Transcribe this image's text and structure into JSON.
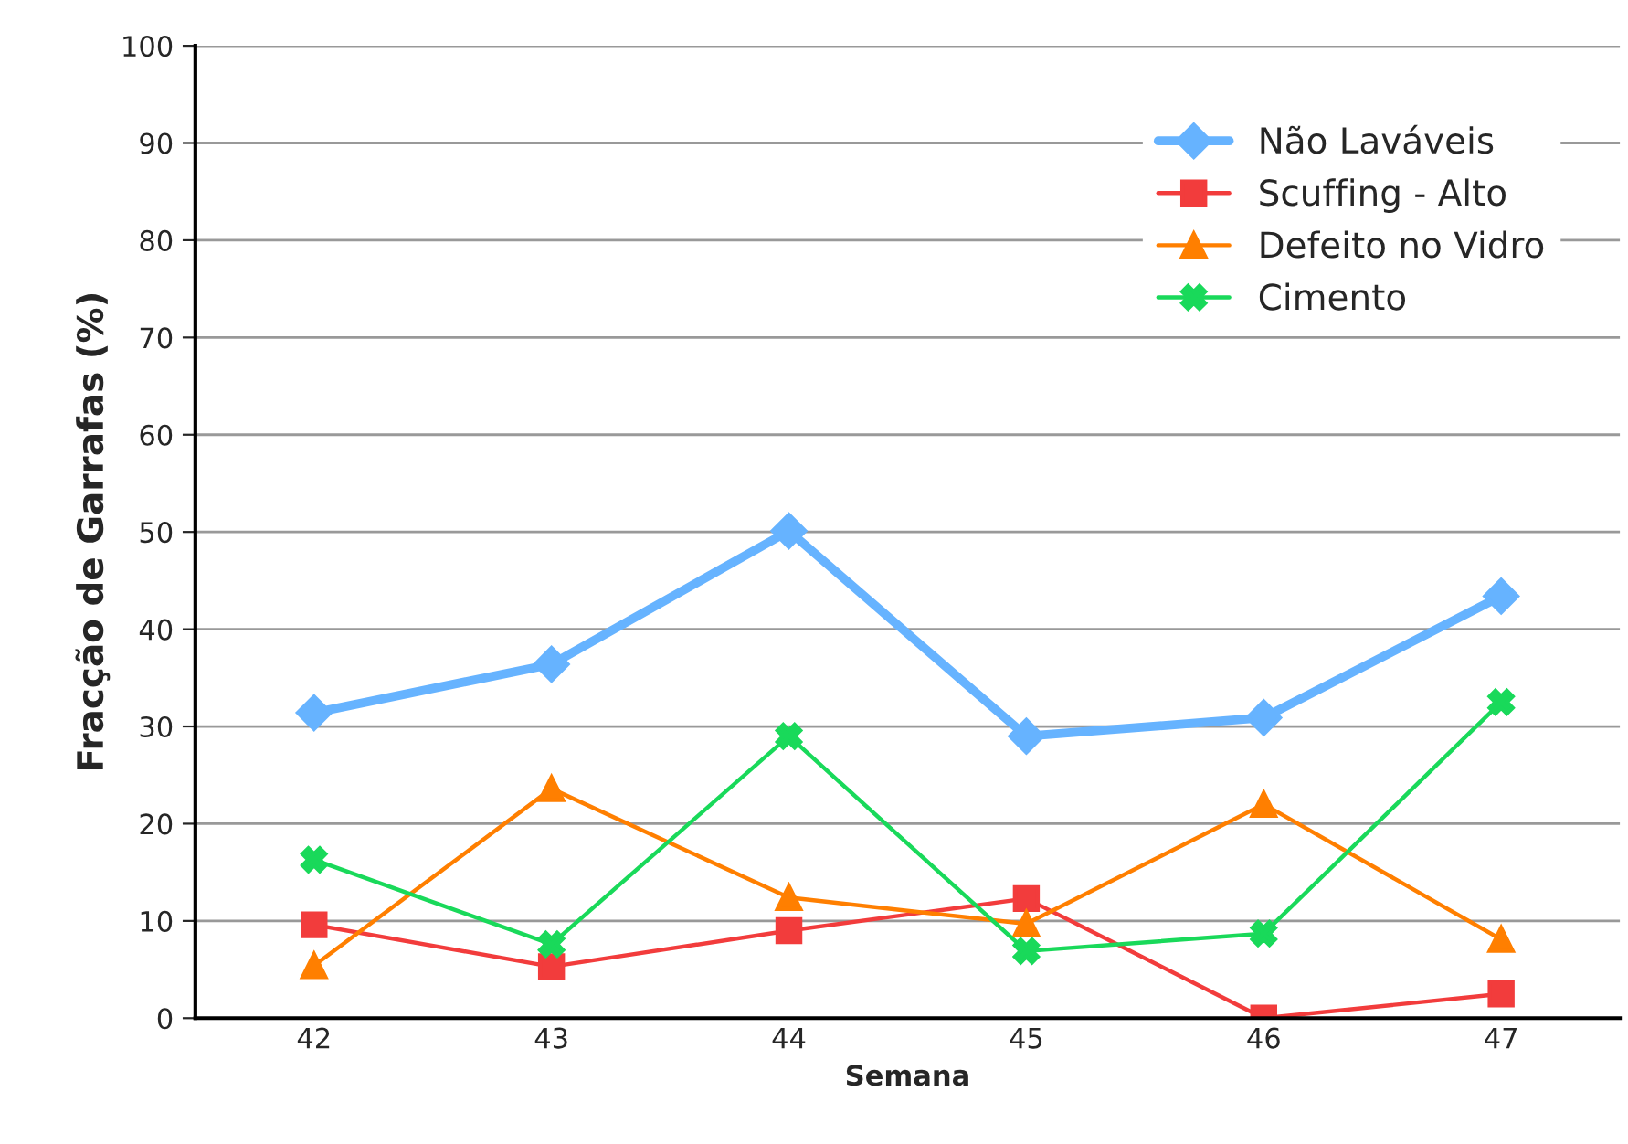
{
  "chart_data": {
    "type": "line",
    "xlabel": "Semana",
    "ylabel": "Fracção de Garrafas (%)",
    "categories": [
      "42",
      "43",
      "44",
      "45",
      "46",
      "47"
    ],
    "series": [
      {
        "name": "Não Laváveis",
        "color": "#66b3ff",
        "marker": "diamond",
        "values": [
          31.4,
          36.4,
          50.1,
          29.0,
          30.9,
          43.4
        ]
      },
      {
        "name": "Scuffing - Alto",
        "color": "#f23c3c",
        "marker": "square",
        "values": [
          9.6,
          5.3,
          9.0,
          12.3,
          0,
          2.5
        ]
      },
      {
        "name": "Defeito no Vidro",
        "color": "#ff7f00",
        "marker": "triangle",
        "values": [
          5.4,
          23.6,
          12.4,
          9.7,
          22.0,
          8.1
        ]
      },
      {
        "name": "Cimento",
        "color": "#19d95a",
        "marker": "cross",
        "values": [
          16.3,
          7.6,
          29.0,
          6.9,
          8.7,
          32.5
        ]
      }
    ],
    "ylim": [
      0,
      100
    ],
    "yticks": [
      0,
      10,
      20,
      30,
      40,
      50,
      60,
      70,
      80,
      90,
      100
    ],
    "grid": "y",
    "legend": "top right",
    "line_style": "solid"
  }
}
